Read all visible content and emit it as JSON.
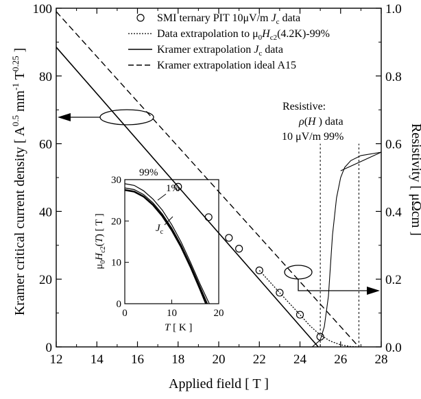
{
  "chart_data": [
    {
      "type": "line",
      "xlabel": "Applied field [ T ]",
      "ylabel_left": "Kramer critical current density [ A^0.5 mm^-1 T^0.25 ]",
      "ylabel_right": "Resistivity [ μΩcm ]",
      "xlim": [
        12,
        28
      ],
      "ylim_left": [
        0,
        100
      ],
      "ylim_right": [
        0.0,
        1.0
      ],
      "xticks": [
        "12",
        "14",
        "16",
        "18",
        "20",
        "22",
        "24",
        "26",
        "28"
      ],
      "yticks_left": [
        "0",
        "20",
        "40",
        "60",
        "80",
        "100"
      ],
      "yticks_right": [
        "0.0",
        "0.2",
        "0.4",
        "0.6",
        "0.8",
        "1.0"
      ],
      "grid": false,
      "legend_position": "top-right",
      "legend": [
        "SMI ternary PIT 10μV/m J_c data",
        "Data extrapolation to μ0H_c2(4.2K)-99%",
        "Kramer extrapolation J_c data",
        "Kramer extrapolation ideal A15"
      ],
      "series": [
        {
          "name": "SMI ternary PIT 10μV/m J_c data",
          "style": "markers",
          "x": [
            18.0,
            19.5,
            20.5,
            21.0,
            22.0,
            23.0,
            24.0,
            25.0
          ],
          "y": [
            47.3,
            38.3,
            32.2,
            29.0,
            22.6,
            16.0,
            9.5,
            3.0
          ]
        },
        {
          "name": "Kramer extrapolation J_c data",
          "style": "solid",
          "x": [
            12.0,
            24.9
          ],
          "y": [
            88.5,
            0.0
          ]
        },
        {
          "name": "Kramer extrapolation ideal A15",
          "style": "dashed",
          "x": [
            12.0,
            26.9
          ],
          "y": [
            99.0,
            0.0
          ]
        },
        {
          "name": "Data extrapolation to μ0H_c2(4.2K)-99%",
          "style": "dotted",
          "x": [
            22.0,
            23.0,
            24.0,
            24.5,
            25.0,
            25.5,
            26.0,
            26.5,
            26.9
          ],
          "y": [
            22.6,
            16.0,
            9.5,
            6.2,
            3.5,
            1.7,
            0.6,
            0.1,
            0.0
          ]
        },
        {
          "name": "Resistive: ρ(H) data",
          "style": "thin-solid",
          "axis": "right",
          "x": [
            24.6,
            25.0,
            25.2,
            25.4,
            25.6,
            25.8,
            26.0,
            26.2,
            26.5,
            27.0,
            28.0
          ],
          "y": [
            0.0,
            0.02,
            0.06,
            0.15,
            0.33,
            0.44,
            0.5,
            0.53,
            0.55,
            0.565,
            0.575
          ]
        },
        {
          "name": "resistive-tangent-line",
          "style": "thin-solid",
          "axis": "right",
          "x": [
            26.0,
            28.0
          ],
          "y": [
            0.52,
            0.575
          ]
        }
      ],
      "reference_lines_x": [
        25.0,
        26.9
      ],
      "annotations": {
        "resistive_title": "Resistive:",
        "resistive_sub": "ρ(H ) data",
        "resistive_levels": "10 μV/m  99%"
      }
    },
    {
      "type": "line",
      "role": "inset",
      "xlabel": "T [ K ]",
      "ylabel": "μ0Hc2(T) [ T ]",
      "xlim": [
        0,
        20
      ],
      "ylim": [
        0,
        30
      ],
      "xticks": [
        "0",
        "10",
        "20"
      ],
      "yticks": [
        "0",
        "10",
        "20",
        "30"
      ],
      "series": [
        {
          "name": "99%",
          "x": [
            0,
            2,
            4,
            6,
            8,
            10,
            12,
            14,
            16,
            18.0
          ],
          "y": [
            29.0,
            28.6,
            27.3,
            25.3,
            22.6,
            19.1,
            14.9,
            10.0,
            4.8,
            0.0
          ]
        },
        {
          "name": "1%",
          "x": [
            0,
            2,
            4,
            6,
            8,
            10,
            12,
            14,
            16,
            17.6
          ],
          "y": [
            28.0,
            27.6,
            26.4,
            24.4,
            21.7,
            18.3,
            14.2,
            9.4,
            4.2,
            0.0
          ]
        },
        {
          "name": "J_c",
          "x": [
            0,
            2,
            4,
            6,
            8,
            10,
            12,
            14,
            16,
            17.3
          ],
          "y": [
            27.5,
            27.1,
            25.9,
            23.9,
            21.2,
            17.8,
            13.7,
            8.9,
            3.6,
            0.0
          ]
        }
      ],
      "labels": {
        "l99": "99%",
        "l1": "1%",
        "ljc": "J",
        "ljc_sub": "c"
      }
    }
  ],
  "colors": {
    "ink": "#000000",
    "background": "#ffffff"
  }
}
